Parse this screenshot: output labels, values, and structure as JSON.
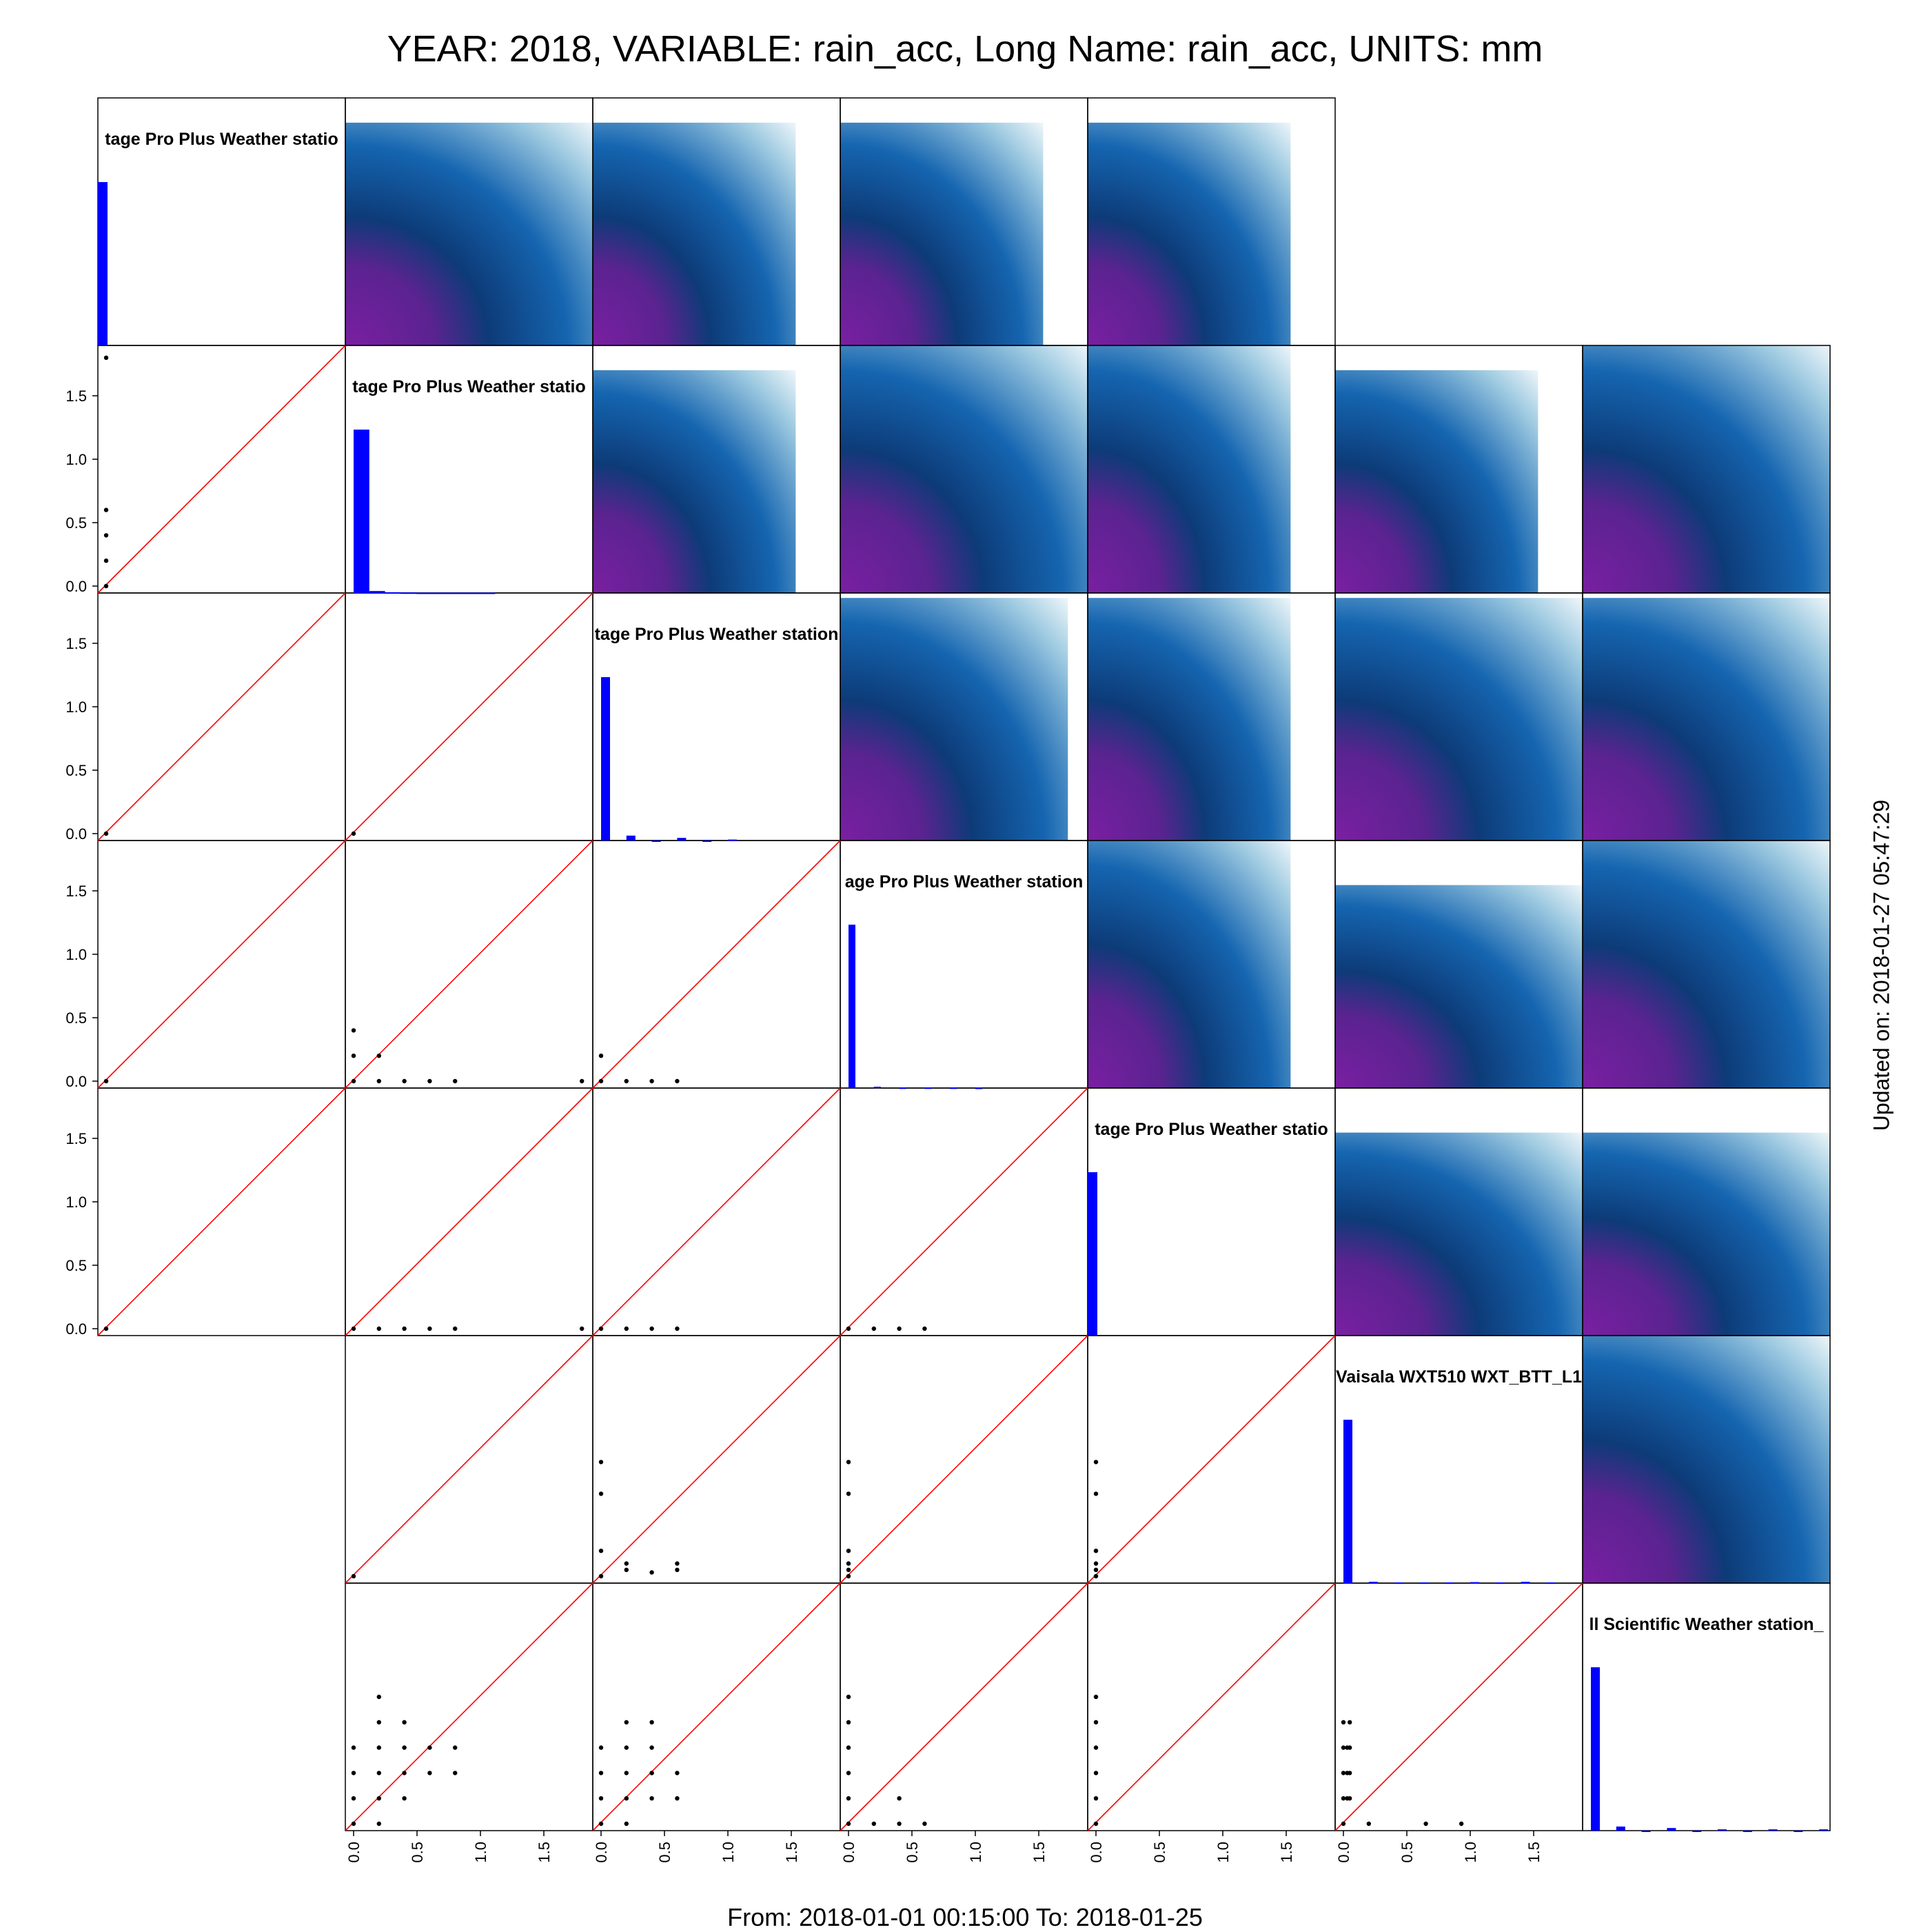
{
  "title": "YEAR: 2018, VARIABLE: rain_acc, Long Name: rain_acc, UNITS: mm",
  "footer": "From: 2018-01-01 00:15:00 To: 2018-01-25",
  "updated": "Updated on: 2018-01-27 05:47:29",
  "colors": {
    "hist": "#0000ff",
    "identity_line": "#ff0000",
    "points": "#000000",
    "panel_border": "#000000",
    "gradient": [
      "#7a1fa2",
      "#0d3b78",
      "#1565b0",
      "#9ecae1",
      "#ffffff"
    ]
  },
  "chart_data": {
    "type": "scatter",
    "layout": "scatterplot-matrix",
    "grid_size": 7,
    "axis_range": [
      0,
      1.9
    ],
    "ticks": [
      "0.0",
      "0.5",
      "1.0",
      "1.5"
    ],
    "tick_values": [
      0,
      0.5,
      1,
      1.5
    ],
    "diagonal_labels": [
      "tage Pro Plus Weather statio",
      "tage Pro Plus Weather statio",
      "tage Pro Plus Weather station",
      "age Pro Plus Weather station",
      "tage Pro Plus Weather statio",
      "Vaisala WXT510 WXT_BTT_L1",
      "ll Scientific  Weather station_"
    ],
    "histograms": [
      [
        1.0
      ],
      [
        1.0,
        0.012,
        0.004,
        0.003,
        0.002,
        0.002,
        0.002,
        0.002,
        0.002
      ],
      [
        1.0,
        0.03,
        0,
        0.016,
        0,
        0.006
      ],
      [
        1.0,
        0.008,
        0.003,
        0.003,
        0.003,
        0.002
      ],
      [
        1.0
      ],
      [
        1.0,
        0.008,
        0.004,
        0.004,
        0.004,
        0.006,
        0.004,
        0.008,
        0.004
      ],
      [
        1.0,
        0.025,
        0,
        0.016,
        0,
        0.008,
        0,
        0.008,
        0,
        0.008
      ]
    ],
    "heatmap_cells": [
      {
        "row": 0,
        "col": 1,
        "fill": [
          0,
          0.1,
          1,
          1
        ]
      },
      {
        "row": 0,
        "col": 2,
        "fill": [
          0,
          0.1,
          0.82,
          1
        ]
      },
      {
        "row": 0,
        "col": 3,
        "fill": [
          0,
          0.1,
          0.82,
          1
        ]
      },
      {
        "row": 0,
        "col": 4,
        "fill": [
          0,
          0.1,
          0.82,
          1
        ]
      },
      {
        "row": 1,
        "col": 2,
        "fill": [
          0,
          0.1,
          0.82,
          1
        ]
      },
      {
        "row": 1,
        "col": 3,
        "fill": [
          0,
          0,
          1,
          1
        ]
      },
      {
        "row": 1,
        "col": 4,
        "fill": [
          0,
          0,
          0.82,
          1
        ]
      },
      {
        "row": 1,
        "col": 5,
        "fill": [
          0,
          0.1,
          0.82,
          1
        ]
      },
      {
        "row": 1,
        "col": 6,
        "fill": [
          0,
          0,
          1,
          1
        ]
      },
      {
        "row": 2,
        "col": 3,
        "fill": [
          0,
          0.02,
          0.92,
          1
        ]
      },
      {
        "row": 2,
        "col": 4,
        "fill": [
          0,
          0.02,
          0.82,
          1
        ]
      },
      {
        "row": 2,
        "col": 5,
        "fill": [
          0,
          0.02,
          1,
          1
        ]
      },
      {
        "row": 2,
        "col": 6,
        "fill": [
          0,
          0.02,
          1,
          1
        ]
      },
      {
        "row": 3,
        "col": 4,
        "fill": [
          0,
          0,
          0.82,
          1
        ]
      },
      {
        "row": 3,
        "col": 5,
        "fill": [
          0,
          0.18,
          1,
          1
        ]
      },
      {
        "row": 3,
        "col": 6,
        "fill": [
          0,
          0,
          1,
          1
        ]
      },
      {
        "row": 4,
        "col": 5,
        "fill": [
          0,
          0.18,
          1,
          1
        ]
      },
      {
        "row": 4,
        "col": 6,
        "fill": [
          0,
          0.18,
          1,
          1
        ]
      },
      {
        "row": 5,
        "col": 6,
        "fill": [
          0,
          0,
          1,
          1
        ]
      }
    ],
    "scatter_cells": [
      {
        "row": 1,
        "col": 0,
        "x": [
          0,
          0,
          0,
          0,
          0
        ],
        "y": [
          0,
          0.2,
          0.4,
          0.6,
          1.8
        ]
      },
      {
        "row": 2,
        "col": 0,
        "x": [
          0
        ],
        "y": [
          0
        ]
      },
      {
        "row": 2,
        "col": 1,
        "x": [
          0
        ],
        "y": [
          0
        ]
      },
      {
        "row": 3,
        "col": 0,
        "x": [
          0
        ],
        "y": [
          0
        ]
      },
      {
        "row": 3,
        "col": 1,
        "x": [
          0,
          0,
          0,
          0.2,
          0.2,
          0.4,
          0.6,
          0.8,
          1.8
        ],
        "y": [
          0,
          0.2,
          0.4,
          0,
          0.2,
          0,
          0,
          0,
          0
        ]
      },
      {
        "row": 3,
        "col": 2,
        "x": [
          0,
          0,
          0.2,
          0.4,
          0.6
        ],
        "y": [
          0,
          0.2,
          0,
          0,
          0
        ]
      },
      {
        "row": 4,
        "col": 0,
        "x": [
          0
        ],
        "y": [
          0
        ]
      },
      {
        "row": 4,
        "col": 1,
        "x": [
          0,
          0.2,
          0.4,
          0.6,
          0.8,
          1.8
        ],
        "y": [
          0,
          0,
          0,
          0,
          0,
          0
        ]
      },
      {
        "row": 4,
        "col": 2,
        "x": [
          0,
          0.2,
          0.4,
          0.6
        ],
        "y": [
          0,
          0,
          0,
          0
        ]
      },
      {
        "row": 4,
        "col": 3,
        "x": [
          0,
          0.2,
          0.4,
          0.6
        ],
        "y": [
          0,
          0,
          0,
          0
        ]
      },
      {
        "row": 5,
        "col": 1,
        "x": [
          0
        ],
        "y": [
          0
        ]
      },
      {
        "row": 5,
        "col": 2,
        "x": [
          0,
          0,
          0,
          0,
          0.2,
          0.2,
          0.4,
          0.6,
          0.6
        ],
        "y": [
          0,
          0.2,
          0.65,
          0.9,
          0.05,
          0.1,
          0.03,
          0.05,
          0.1
        ]
      },
      {
        "row": 5,
        "col": 3,
        "x": [
          0,
          0,
          0,
          0,
          0,
          0
        ],
        "y": [
          0,
          0.05,
          0.1,
          0.2,
          0.65,
          0.9
        ]
      },
      {
        "row": 5,
        "col": 4,
        "x": [
          0,
          0,
          0,
          0,
          0,
          0
        ],
        "y": [
          0,
          0.05,
          0.1,
          0.2,
          0.65,
          0.9
        ]
      },
      {
        "row": 6,
        "col": 1,
        "x": [
          0,
          0,
          0,
          0,
          0.2,
          0.2,
          0.2,
          0.2,
          0.2,
          0.2,
          0.4,
          0.4,
          0.4,
          0.4,
          0.6,
          0.6,
          0.8,
          0.8
        ],
        "y": [
          0,
          0.2,
          0.4,
          0.6,
          0,
          0.2,
          0.4,
          0.6,
          0.8,
          1.0,
          0.2,
          0.4,
          0.6,
          0.8,
          0.4,
          0.6,
          0.4,
          0.6
        ]
      },
      {
        "row": 6,
        "col": 2,
        "x": [
          0,
          0,
          0,
          0,
          0.2,
          0.2,
          0.2,
          0.2,
          0.2,
          0.4,
          0.4,
          0.4,
          0.4,
          0.4,
          0.6,
          0.6
        ],
        "y": [
          0,
          0.2,
          0.4,
          0.6,
          0,
          0.2,
          0.4,
          0.6,
          0.8,
          0.2,
          0.4,
          0.6,
          0.8,
          0.4,
          0.2,
          0.4
        ]
      },
      {
        "row": 6,
        "col": 3,
        "x": [
          0,
          0,
          0,
          0,
          0,
          0,
          0.2,
          0.4,
          0.4,
          0.6
        ],
        "y": [
          0,
          0.2,
          0.4,
          0.6,
          0.8,
          1.0,
          0,
          0,
          0.2,
          0
        ]
      },
      {
        "row": 6,
        "col": 4,
        "x": [
          0,
          0,
          0,
          0,
          0,
          0
        ],
        "y": [
          0,
          0.2,
          0.4,
          0.6,
          0.8,
          1.0
        ]
      },
      {
        "row": 6,
        "col": 5,
        "x": [
          0,
          0,
          0,
          0,
          0,
          0.03,
          0.03,
          0.03,
          0.05,
          0.05,
          0.05,
          0.05,
          0.2,
          0.65,
          0.93
        ],
        "y": [
          0,
          0.2,
          0.4,
          0.6,
          0.8,
          0.4,
          0.6,
          0.2,
          0.2,
          0.4,
          0.6,
          0.8,
          0,
          0,
          0
        ]
      }
    ]
  }
}
